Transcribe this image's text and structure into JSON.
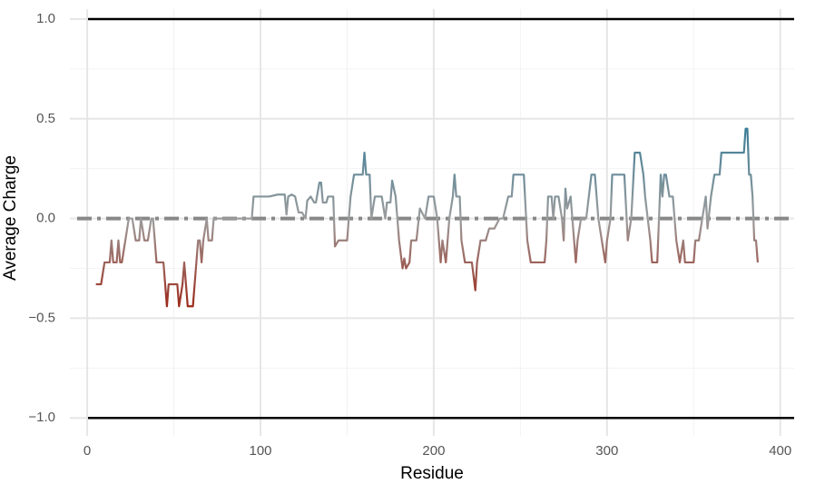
{
  "chart_data": {
    "type": "line",
    "x_label": "Residue",
    "y_label": "Average Charge",
    "x": [
      5,
      8,
      10,
      13,
      14,
      15,
      17,
      18,
      19,
      20,
      22,
      24,
      26,
      28,
      30,
      31,
      33,
      35,
      37,
      38,
      40,
      44,
      46,
      47,
      52,
      53,
      55,
      56,
      57,
      58,
      61,
      63,
      64,
      65,
      66,
      67,
      69,
      70,
      72,
      73,
      78,
      85,
      90,
      95,
      96,
      105,
      110,
      114,
      115,
      116,
      118,
      120,
      122,
      124,
      126,
      127,
      129,
      131,
      132,
      134,
      135,
      136,
      138,
      139,
      142,
      143,
      145,
      150,
      152,
      154,
      159,
      160,
      161,
      163,
      164,
      166,
      170,
      172,
      173,
      175,
      176,
      178,
      180,
      182,
      183,
      184,
      186,
      187,
      190,
      192,
      195,
      197,
      200,
      202,
      204,
      205,
      207,
      209,
      211,
      212,
      213,
      215,
      216,
      218,
      222,
      224,
      225,
      227,
      230,
      232,
      235,
      238,
      240,
      243,
      245,
      246,
      250,
      252,
      254,
      256,
      264,
      265,
      266,
      268,
      269,
      270,
      272,
      274,
      275,
      276,
      277,
      279,
      281,
      282,
      283,
      285,
      288,
      291,
      293,
      295,
      297,
      299,
      300,
      302,
      303,
      310,
      312,
      314,
      316,
      319,
      321,
      322,
      325,
      326,
      329,
      331,
      332,
      333,
      334,
      336,
      338,
      340,
      342,
      344,
      345,
      350,
      351,
      353,
      355,
      357,
      358,
      360,
      362,
      365,
      366,
      370,
      375,
      379,
      380,
      381,
      382,
      383,
      384,
      385,
      386,
      387
    ],
    "series": [
      {
        "values": [
          -0.33,
          -0.33,
          -0.22,
          -0.22,
          -0.11,
          -0.22,
          -0.22,
          -0.11,
          -0.22,
          -0.22,
          -0.11,
          0,
          0,
          -0.11,
          -0.11,
          0,
          -0.11,
          -0.11,
          0,
          0,
          -0.22,
          -0.22,
          -0.44,
          -0.33,
          -0.33,
          -0.44,
          -0.33,
          -0.22,
          -0.33,
          -0.44,
          -0.44,
          -0.22,
          -0.11,
          -0.11,
          -0.22,
          -0.11,
          0,
          -0.11,
          -0.11,
          0,
          0,
          0,
          0,
          0,
          0.11,
          0.11,
          0.12,
          0.12,
          0.02,
          0.11,
          0.12,
          0.11,
          0.03,
          0.03,
          0,
          0.09,
          0.11,
          0.08,
          0.08,
          0.18,
          0.18,
          0.08,
          0.08,
          0.11,
          0.11,
          -0.14,
          -0.11,
          -0.11,
          0.11,
          0.22,
          0.22,
          0.33,
          0.22,
          0.22,
          0,
          0.11,
          0.11,
          0,
          0.08,
          0.08,
          0.19,
          0.11,
          -0.11,
          -0.25,
          -0.2,
          -0.25,
          -0.22,
          -0.11,
          -0.11,
          0.05,
          0,
          0.11,
          0.11,
          0,
          -0.22,
          -0.11,
          -0.22,
          0,
          0.11,
          0.22,
          0.11,
          0.11,
          -0.11,
          -0.22,
          -0.22,
          -0.36,
          -0.22,
          -0.11,
          -0.11,
          -0.05,
          -0.05,
          0,
          0,
          0.11,
          0.11,
          0.22,
          0.22,
          0.22,
          -0.11,
          -0.22,
          -0.22,
          -0.11,
          0.11,
          0.11,
          0,
          0.11,
          0.11,
          0,
          -0.11,
          0.15,
          0.05,
          0.11,
          -0.11,
          -0.22,
          -0.11,
          0,
          0,
          0.22,
          0.22,
          0,
          -0.11,
          -0.22,
          -0.11,
          0,
          0.22,
          0.22,
          -0.11,
          0,
          0.33,
          0.33,
          0.22,
          0.11,
          -0.11,
          -0.22,
          -0.22,
          0.22,
          0.11,
          0.22,
          0.22,
          0.11,
          0.11,
          -0.11,
          -0.22,
          -0.11,
          -0.22,
          -0.22,
          -0.11,
          -0.11,
          0,
          0.11,
          -0.05,
          0.11,
          0.22,
          0.22,
          0.33,
          0.33,
          0.33,
          0.33,
          0.45,
          0.45,
          0.22,
          0.22,
          0.11,
          -0.11,
          -0.11,
          -0.22
        ]
      }
    ],
    "color_scale": [
      {
        "value": -0.45,
        "color": "#9b2818"
      },
      {
        "value": 0,
        "color": "#9c9c9c"
      },
      {
        "value": 0.45,
        "color": "#3c7e98"
      }
    ],
    "hlines": [
      {
        "value": 1,
        "color": "#000000",
        "dash": "solid"
      },
      {
        "value": -1,
        "color": "#000000",
        "dash": "solid"
      },
      {
        "value": 0,
        "color": "#888888",
        "dash": "dashdot"
      }
    ],
    "xlim": [
      -10,
      408
    ],
    "ylim": [
      -1.09,
      1.05
    ],
    "xticks": [
      0,
      100,
      200,
      300,
      400
    ],
    "yticks": [
      {
        "value": -1,
        "label": "−1.0"
      },
      {
        "value": -0.5,
        "label": "−0.5"
      },
      {
        "value": 0,
        "label": "0.0"
      },
      0.5,
      {
        "value": 1,
        "label": "1.0"
      }
    ],
    "xminor": [
      50,
      150,
      250,
      350
    ],
    "yminor": [
      -0.75,
      -0.25,
      0.25,
      0.75
    ],
    "grid": true
  }
}
